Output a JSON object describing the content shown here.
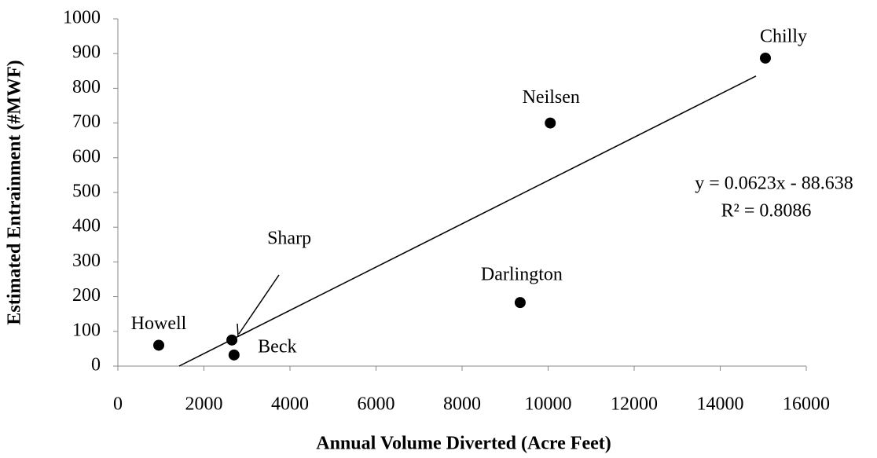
{
  "chart_data": {
    "type": "scatter",
    "xlabel": "Annual Volume Diverted (Acre Feet)",
    "ylabel": "Estimated Entrainment (#MWF)",
    "series": [
      {
        "color": "#000000",
        "labels": [
          "Howell",
          "Sharp",
          "Beck",
          "Darlington",
          "Neilsen",
          "Chilly"
        ],
        "x": [
          950,
          2650,
          2700,
          9350,
          10050,
          15050
        ],
        "values": [
          60,
          75,
          32,
          183,
          700,
          887
        ]
      }
    ],
    "trendline": {
      "slope": 0.0623,
      "intercept": -88.638,
      "equation": "y = 0.0623x - 88.638",
      "r2": "R² = 0.8086"
    },
    "xlim": [
      0,
      16000
    ],
    "xticks": [
      0,
      2000,
      4000,
      6000,
      8000,
      10000,
      12000,
      14000,
      16000
    ],
    "ylim": [
      0,
      1000
    ],
    "yticks": [
      0,
      100,
      200,
      300,
      400,
      500,
      600,
      700,
      800,
      900,
      1000
    ],
    "grid": false
  }
}
